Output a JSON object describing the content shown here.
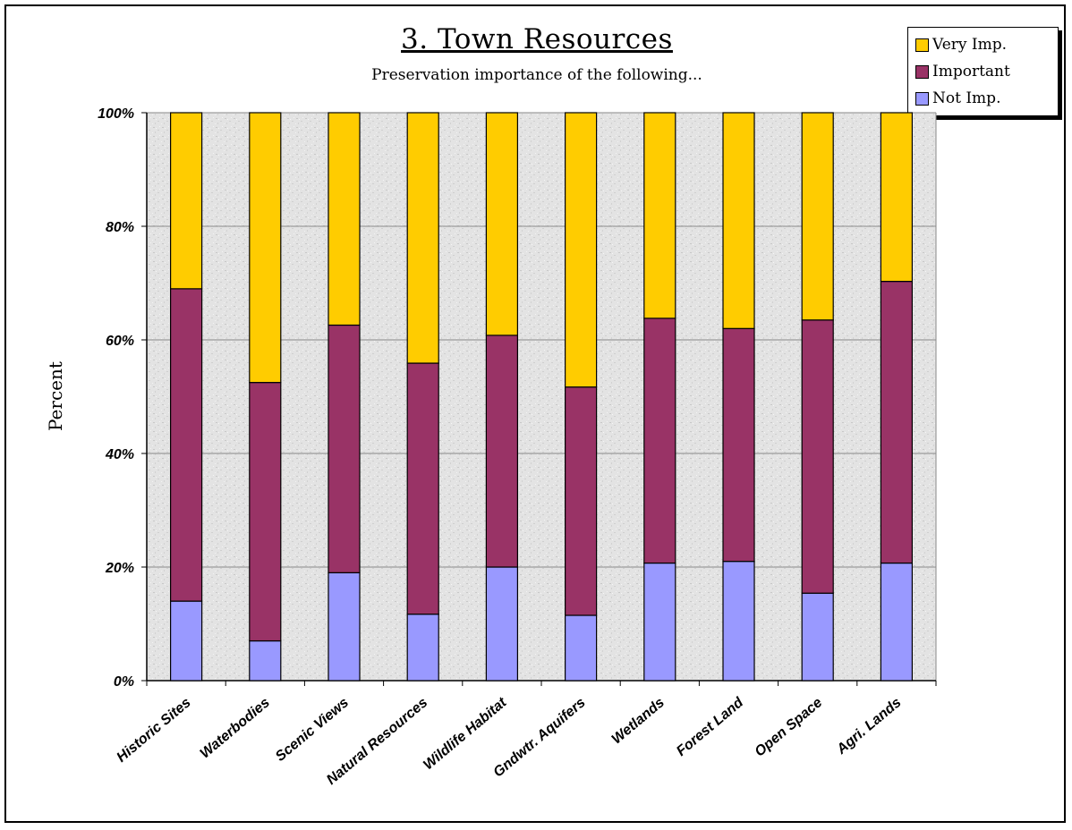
{
  "chart_data": {
    "type": "bar",
    "stacked": true,
    "title": "3. Town Resources",
    "subtitle": "Preservation importance of the following...",
    "ylabel": "Percent",
    "xlabel": "",
    "ylim": [
      0,
      100
    ],
    "yticks": [
      "0%",
      "20%",
      "40%",
      "60%",
      "80%",
      "100%"
    ],
    "grid": true,
    "legend_position": "top-right",
    "categories": [
      "Historic Sites",
      "Waterbodies",
      "Scenic Views",
      "Natural Resources",
      "Wildlife Habitat",
      "Gndwtr. Aquifers",
      "Wetlands",
      "Forest Land",
      "Open Space",
      "Agri. Lands"
    ],
    "series": [
      {
        "name": "Not Imp.",
        "color": "#9999ff",
        "values": [
          14,
          7,
          19,
          11.7,
          20,
          11.5,
          20.7,
          21,
          15.4,
          20.7
        ]
      },
      {
        "name": "Important",
        "color": "#993366",
        "values": [
          55,
          45.5,
          43.6,
          44.2,
          40.8,
          40.2,
          43.1,
          41,
          48.1,
          49.6
        ]
      },
      {
        "name": "Very Imp.",
        "color": "#ffcc00",
        "values": [
          31,
          47.5,
          37.4,
          44.1,
          39.2,
          48.3,
          36.2,
          38,
          36.5,
          29.7
        ]
      }
    ]
  },
  "legend": [
    {
      "label": "Very Imp.",
      "color": "#ffcc00"
    },
    {
      "label": "Important",
      "color": "#993366"
    },
    {
      "label": "Not Imp.",
      "color": "#9999ff"
    }
  ]
}
